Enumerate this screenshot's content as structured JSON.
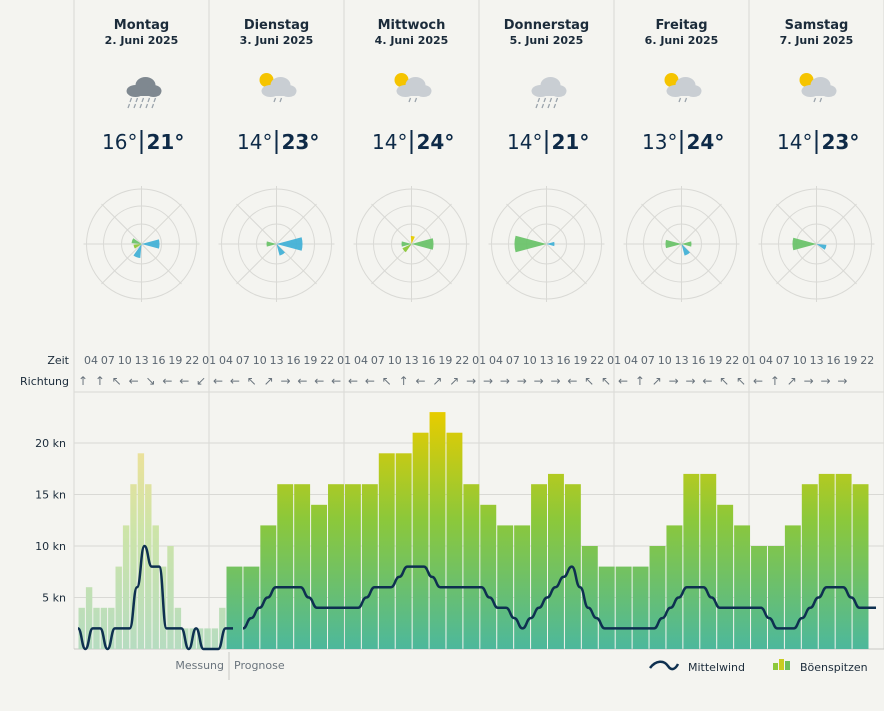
{
  "labels": {
    "zeit": "Zeit",
    "richtung": "Richtung",
    "messung": "Messung",
    "prognose": "Prognose"
  },
  "legend": {
    "mean": "Mittelwind",
    "gust": "Böenspitzen"
  },
  "days": [
    {
      "name": "Montag",
      "date": "2. Juni 2025",
      "min": "16°",
      "max": "21°",
      "icon": "rain-cloud-icon"
    },
    {
      "name": "Dienstag",
      "date": "3. Juni 2025",
      "min": "14°",
      "max": "23°",
      "icon": "sun-cloud-drizzle-icon"
    },
    {
      "name": "Mittwoch",
      "date": "4. Juni 2025",
      "min": "14°",
      "max": "24°",
      "icon": "sun-cloud-drizzle-icon"
    },
    {
      "name": "Donnerstag",
      "date": "5. Juni 2025",
      "min": "14°",
      "max": "21°",
      "icon": "cloud-drizzle-icon"
    },
    {
      "name": "Freitag",
      "date": "6. Juni 2025",
      "min": "13°",
      "max": "24°",
      "icon": "sun-cloud-drizzle-icon"
    },
    {
      "name": "Samstag",
      "date": "7. Juni 2025",
      "min": "14°",
      "max": "23°",
      "icon": "sun-cloud-drizzle-icon"
    }
  ],
  "hours": [
    "04",
    "07",
    "10",
    "13",
    "16",
    "19",
    "22",
    "01",
    "04",
    "07",
    "10",
    "13",
    "16",
    "19",
    "22",
    "01",
    "04",
    "07",
    "10",
    "13",
    "16",
    "19",
    "22",
    "01",
    "04",
    "07",
    "10",
    "13",
    "16",
    "19",
    "22",
    "01",
    "04",
    "07",
    "10",
    "13",
    "16",
    "19",
    "22",
    "01",
    "04",
    "07",
    "10",
    "13",
    "16",
    "19",
    "22"
  ],
  "directions": [
    "↑",
    "↑",
    "↖",
    "←",
    "↘",
    "←",
    "←",
    "↙",
    "←",
    "←",
    "↖",
    "↗",
    "→",
    "←",
    "←",
    "←",
    "←",
    "←",
    "↖",
    "↑",
    "←",
    "↗",
    "↗",
    "→",
    "→",
    "→",
    "→",
    "→",
    "→",
    "←",
    "↖",
    "↖",
    "←",
    "↑",
    "↗",
    "→",
    "→",
    "←",
    "↖",
    "↖",
    "←",
    "↑",
    "↗",
    "→",
    "→",
    "→"
  ],
  "colors": {
    "mean_line": "#0e3050",
    "gust_top": "#e6cc00",
    "gust_bottom": "#4db89c",
    "measured": "#b8dcb0",
    "measured_top": "#e8e098",
    "grid": "#d8d8d4"
  },
  "chart_data": {
    "type": "bar",
    "unit": "kn",
    "y_ticks": [
      "5 kn",
      "10 kn",
      "15 kn",
      "20 kn"
    ],
    "ylim": [
      0,
      23
    ],
    "measured_gusts": [
      4,
      6,
      4,
      4,
      4,
      8,
      12,
      16,
      19,
      16,
      12,
      8,
      10,
      4,
      2,
      2,
      2,
      2,
      2,
      4
    ],
    "forecast_gusts": [
      8,
      8,
      12,
      16,
      16,
      14,
      16,
      16,
      16,
      19,
      19,
      21,
      23,
      21,
      16,
      14,
      12,
      12,
      16,
      17,
      16,
      10,
      8,
      8,
      8,
      10,
      12,
      17,
      17,
      14,
      12,
      10,
      10,
      12,
      16,
      17,
      17,
      16
    ],
    "measured_mean": [
      2,
      0,
      2,
      2,
      0,
      2,
      2,
      2,
      6,
      10,
      8,
      8,
      2,
      2,
      2,
      0,
      2,
      0,
      0,
      0,
      2,
      2
    ],
    "forecast_mean": [
      2,
      3,
      4,
      5,
      6,
      6,
      6,
      6,
      5,
      4,
      4,
      4,
      4,
      4,
      4,
      5,
      6,
      6,
      6,
      7,
      8,
      8,
      8,
      7,
      6,
      6,
      6,
      6,
      6,
      6,
      5,
      4,
      4,
      3,
      2,
      3,
      4,
      5,
      6,
      7,
      8,
      6,
      4,
      3,
      2,
      2,
      2,
      2,
      2,
      2,
      2,
      3,
      4,
      5,
      6,
      6,
      6,
      5,
      4,
      4,
      4,
      4,
      4,
      4,
      3,
      2,
      2,
      2,
      3,
      4,
      5,
      6,
      6,
      6,
      5,
      4,
      4,
      4
    ]
  }
}
